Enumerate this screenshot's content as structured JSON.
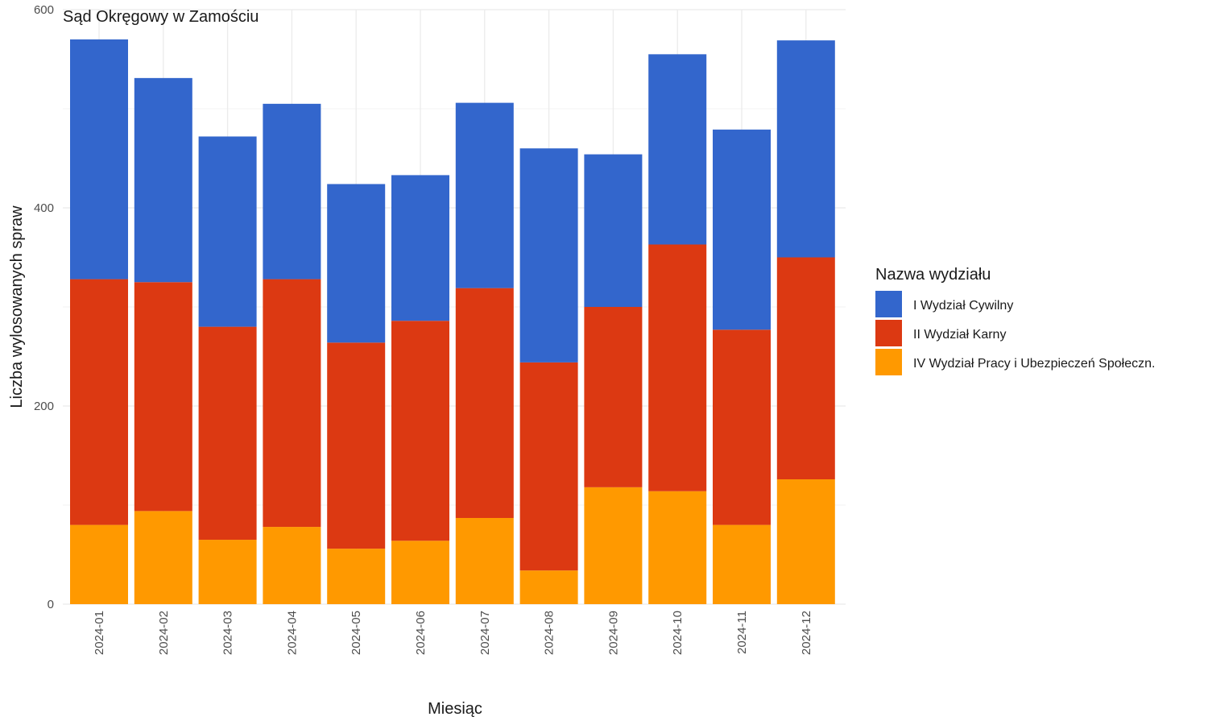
{
  "chart_data": {
    "type": "bar",
    "stacked": true,
    "title": "Sąd Okręgowy w Zamościu",
    "xlabel": "Miesiąc",
    "ylabel": "Liczba wylosowanych spraw",
    "ylim": [
      0,
      600
    ],
    "yticks": [
      "0",
      "200",
      "400",
      "600"
    ],
    "grid": true,
    "legend_position": "right",
    "legend_title": "Nazwa wydziału",
    "categories": [
      "2024-01",
      "2024-02",
      "2024-03",
      "2024-04",
      "2024-05",
      "2024-06",
      "2024-07",
      "2024-08",
      "2024-09",
      "2024-10",
      "2024-11",
      "2024-12"
    ],
    "series": [
      {
        "name": "I Wydział Cywilny",
        "color": "#3366CC",
        "values": [
          242,
          206,
          192,
          177,
          160,
          147,
          187,
          216,
          154,
          192,
          202,
          219
        ]
      },
      {
        "name": "II Wydział Karny",
        "color": "#DC3912",
        "values": [
          248,
          231,
          215,
          250,
          208,
          222,
          232,
          210,
          182,
          249,
          197,
          224
        ]
      },
      {
        "name": "IV Wydział Pracy i Ubezpieczeń Społeczn.",
        "color": "#FF9900",
        "values": [
          80,
          94,
          65,
          78,
          56,
          64,
          87,
          34,
          118,
          114,
          80,
          126
        ]
      }
    ]
  }
}
